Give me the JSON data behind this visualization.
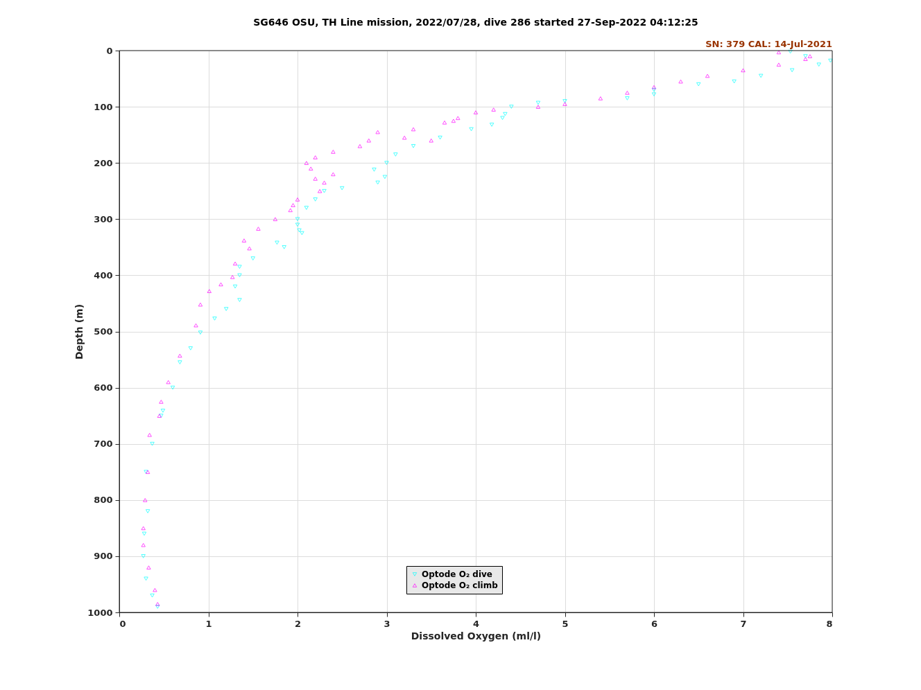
{
  "chart_data": {
    "type": "scatter",
    "title": "SG646 OSU, TH Line mission, 2022/07/28, dive 286 started 27-Sep-2022 04:12:25",
    "xlabel": "Dissolved Oxygen (ml/l)",
    "ylabel": "Depth (m)",
    "annotations": [
      "SN: 379  CAL: 14-Jul-2021"
    ],
    "xlim": [
      0,
      8
    ],
    "xticks": [
      0,
      1,
      2,
      3,
      4,
      5,
      6,
      7,
      8
    ],
    "ylim": [
      1000,
      0
    ],
    "yticks": [
      0,
      100,
      200,
      300,
      400,
      500,
      600,
      700,
      800,
      900,
      1000
    ],
    "grid": true,
    "legend": "bottom",
    "series": [
      {
        "name": "Optode O₂ dive",
        "color": "#00ffff",
        "marker": "triangle-down",
        "x": [
          7.53,
          7.7,
          7.98,
          7.85,
          7.55,
          7.2,
          6.9,
          6.5,
          6.0,
          6.0,
          5.7,
          5.0,
          4.7,
          4.4,
          4.33,
          4.3,
          4.18,
          3.95,
          3.6,
          3.3,
          3.1,
          3.0,
          2.86,
          2.98,
          2.9,
          2.5,
          2.3,
          2.2,
          2.1,
          2.0,
          2.0,
          2.02,
          2.05,
          1.77,
          1.85,
          1.5,
          1.35,
          1.35,
          1.3,
          1.35,
          1.2,
          1.07,
          0.91,
          0.8,
          0.68,
          0.6,
          0.49,
          0.47,
          0.37,
          0.3,
          0.32,
          0.28,
          0.27,
          0.3,
          0.37,
          0.43
        ],
        "values": [
          2,
          10,
          18,
          25,
          35,
          45,
          55,
          60,
          70,
          78,
          85,
          90,
          93,
          100,
          113,
          120,
          132,
          140,
          155,
          170,
          185,
          200,
          212,
          225,
          235,
          245,
          250,
          265,
          280,
          300,
          310,
          320,
          325,
          342,
          350,
          370,
          385,
          400,
          420,
          444,
          460,
          477,
          502,
          530,
          555,
          600,
          641,
          650,
          700,
          750,
          820,
          860,
          900,
          940,
          970,
          990
        ]
      },
      {
        "name": "Optode O₂ climb",
        "color": "#ff00ff",
        "marker": "triangle",
        "x": [
          7.4,
          7.75,
          7.7,
          7.4,
          7.0,
          6.6,
          6.3,
          6.0,
          5.7,
          5.4,
          5.0,
          4.7,
          4.2,
          4.0,
          3.8,
          3.75,
          3.65,
          3.3,
          2.9,
          3.2,
          3.5,
          2.8,
          2.7,
          2.4,
          2.2,
          2.1,
          2.15,
          2.4,
          2.2,
          2.3,
          2.25,
          2.0,
          1.95,
          1.92,
          1.75,
          1.56,
          1.4,
          1.46,
          1.3,
          1.27,
          1.14,
          1.01,
          0.91,
          0.86,
          0.68,
          0.55,
          0.47,
          0.45,
          0.34,
          0.32,
          0.29,
          0.27,
          0.27,
          0.33,
          0.4,
          0.43
        ],
        "values": [
          3,
          10,
          15,
          25,
          35,
          45,
          55,
          65,
          75,
          85,
          95,
          100,
          105,
          110,
          120,
          125,
          128,
          140,
          145,
          155,
          160,
          160,
          170,
          180,
          190,
          200,
          210,
          220,
          228,
          235,
          250,
          265,
          275,
          284,
          300,
          317,
          338,
          352,
          379,
          403,
          416,
          428,
          452,
          489,
          543,
          590,
          625,
          650,
          684,
          750,
          800,
          850,
          880,
          920,
          960,
          985
        ]
      }
    ]
  }
}
